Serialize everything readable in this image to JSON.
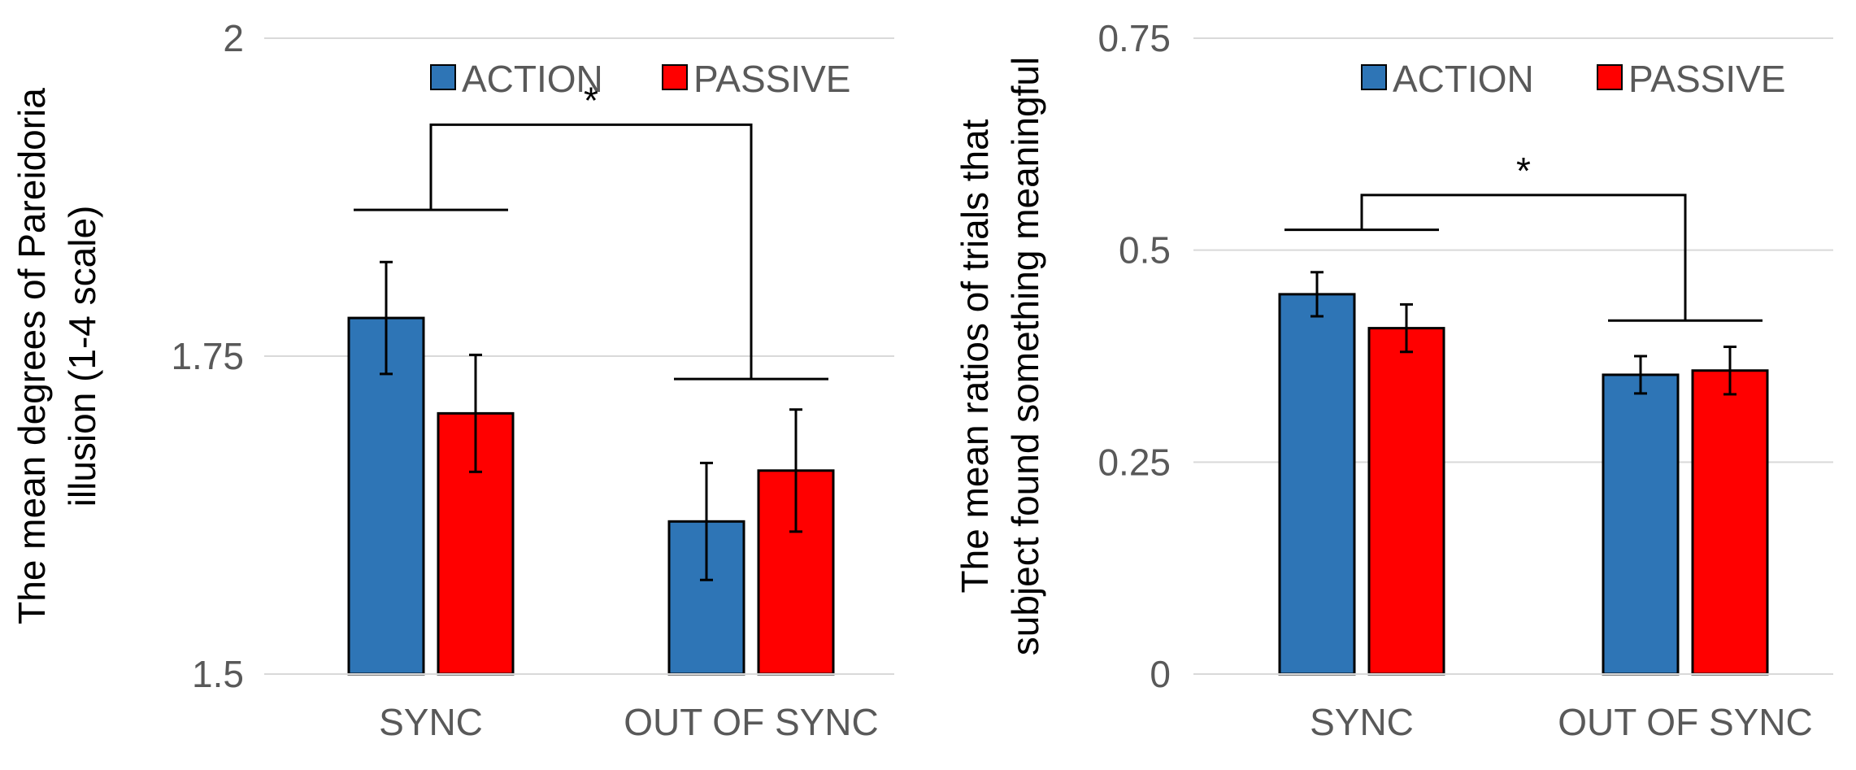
{
  "chart_data": [
    {
      "type": "bar",
      "title": "",
      "categories": [
        "SYNC",
        "OUT OF SYNC"
      ],
      "series": [
        {
          "name": "ACTION",
          "color": "#2E75B6",
          "values": [
            1.78,
            1.62
          ],
          "errors": [
            0.044,
            0.046
          ]
        },
        {
          "name": "PASSIVE",
          "color": "#FF0000",
          "values": [
            1.705,
            1.66
          ],
          "errors": [
            0.046,
            0.048
          ]
        }
      ],
      "ylabel": "The mean degrees of Pareidoria illusion (1-4 scale)",
      "ylabel_lines": [
        "The mean degrees of Pareidoria",
        "illusion (1-4 scale)"
      ],
      "xlabel": "",
      "ylim": [
        1.5,
        2
      ],
      "yticks": [
        1.5,
        1.75,
        2
      ],
      "ytick_labels": [
        "1.5",
        "1.75",
        "2"
      ],
      "grid": true,
      "legend_position": "top-right",
      "significance": {
        "label": "*",
        "left_level": 1.865,
        "right_level": 1.732,
        "top_level": 1.932
      }
    },
    {
      "type": "bar",
      "title": "",
      "categories": [
        "SYNC",
        "OUT OF SYNC"
      ],
      "series": [
        {
          "name": "ACTION",
          "color": "#2E75B6",
          "values": [
            0.448,
            0.353
          ],
          "errors": [
            0.026,
            0.022
          ]
        },
        {
          "name": "PASSIVE",
          "color": "#FF0000",
          "values": [
            0.408,
            0.358
          ],
          "errors": [
            0.028,
            0.028
          ]
        }
      ],
      "ylabel": "The mean ratios of trials that subject found something meaningful",
      "ylabel_lines": [
        "The mean ratios of trials that",
        "subject found something meaningful"
      ],
      "xlabel": "",
      "ylim": [
        0,
        0.75
      ],
      "yticks": [
        0,
        0.25,
        0.5,
        0.75
      ],
      "ytick_labels": [
        "0",
        "0.25",
        "0.5",
        "0.75"
      ],
      "grid": true,
      "legend_position": "top-right",
      "significance": {
        "label": "*",
        "left_level": 0.524,
        "right_level": 0.417,
        "top_level": 0.565
      }
    }
  ]
}
